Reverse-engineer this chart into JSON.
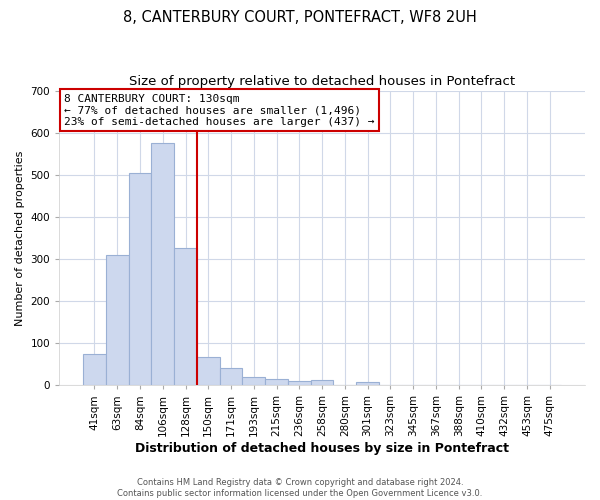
{
  "title": "8, CANTERBURY COURT, PONTEFRACT, WF8 2UH",
  "subtitle": "Size of property relative to detached houses in Pontefract",
  "xlabel": "Distribution of detached houses by size in Pontefract",
  "ylabel": "Number of detached properties",
  "bar_labels": [
    "41sqm",
    "63sqm",
    "84sqm",
    "106sqm",
    "128sqm",
    "150sqm",
    "171sqm",
    "193sqm",
    "215sqm",
    "236sqm",
    "258sqm",
    "280sqm",
    "301sqm",
    "323sqm",
    "345sqm",
    "367sqm",
    "388sqm",
    "410sqm",
    "432sqm",
    "453sqm",
    "475sqm"
  ],
  "bar_values": [
    75,
    310,
    505,
    575,
    325,
    67,
    40,
    20,
    15,
    11,
    12,
    0,
    8,
    0,
    0,
    0,
    0,
    0,
    0,
    0,
    0
  ],
  "bar_color": "#cdd8ee",
  "bar_edge_color": "#9ab0d4",
  "vline_color": "#cc0000",
  "annotation_title": "8 CANTERBURY COURT: 130sqm",
  "annotation_line2": "← 77% of detached houses are smaller (1,496)",
  "annotation_line3": "23% of semi-detached houses are larger (437) →",
  "annotation_box_facecolor": "#ffffff",
  "annotation_box_edgecolor": "#cc0000",
  "ylim": [
    0,
    700
  ],
  "yticks": [
    0,
    100,
    200,
    300,
    400,
    500,
    600,
    700
  ],
  "plot_bg_color": "#ffffff",
  "fig_bg_color": "#ffffff",
  "grid_color": "#d0d8e8",
  "footer_line1": "Contains HM Land Registry data © Crown copyright and database right 2024.",
  "footer_line2": "Contains public sector information licensed under the Open Government Licence v3.0.",
  "title_fontsize": 10.5,
  "subtitle_fontsize": 9.5,
  "xlabel_fontsize": 9,
  "ylabel_fontsize": 8,
  "tick_fontsize": 7.5,
  "annotation_fontsize": 8,
  "footer_fontsize": 6
}
